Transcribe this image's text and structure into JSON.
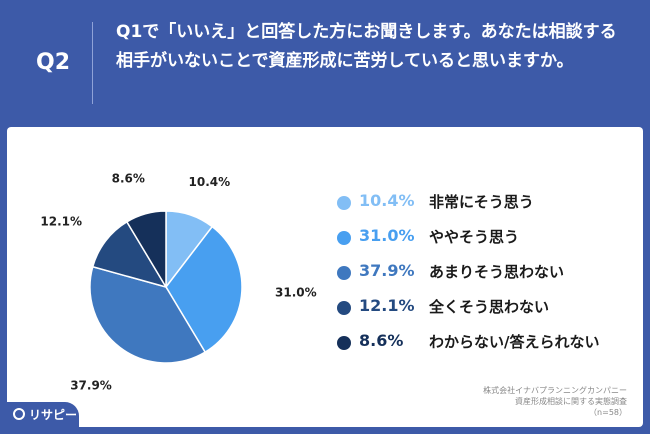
{
  "header": {
    "question_label": "Q2",
    "question_text": "Q1で「いいえ」と回答した方にお聞きします。あなたは相談する相手がいないことで資産形成に苦労していると思いますか。"
  },
  "chart_data": {
    "type": "pie",
    "slices": [
      {
        "label": "非常にそう思う",
        "value": 10.4,
        "display": "10.4%",
        "color": "#82bef5"
      },
      {
        "label": "ややそう思う",
        "value": 31.0,
        "display": "31.0%",
        "color": "#489ff0"
      },
      {
        "label": "あまりそう思わない",
        "value": 37.9,
        "display": "37.9%",
        "color": "#3f78bf"
      },
      {
        "label": "全くそう思わない",
        "value": 12.1,
        "display": "12.1%",
        "color": "#244a80"
      },
      {
        "label": "わからない/答えられない",
        "value": 8.6,
        "display": "8.6%",
        "color": "#15305a"
      }
    ],
    "legend_position": "right"
  },
  "source": {
    "line1": "株式会社イナバプランニングカンパニー",
    "line2": "資産形成相談に関する実態調査",
    "line3": "（n=58）"
  },
  "brand": {
    "name": "リサピー",
    "color": "#3d5aa8"
  }
}
